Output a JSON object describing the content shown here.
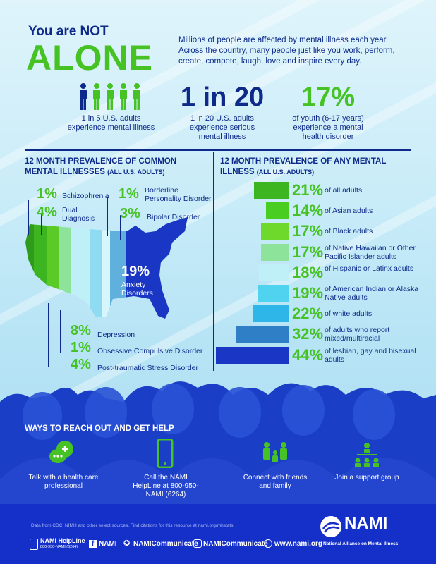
{
  "header": {
    "line1": "You are NOT",
    "line2": "ALONE",
    "intro": "Millions of people are affected by mental illness each year. Across the country, many people just like you work, perform, create, compete, laugh, love and inspire every day."
  },
  "stats": [
    {
      "big": "1 in 5",
      "text": "1 in 5 U.S. adults experience mental illness"
    },
    {
      "big": "1 in 20",
      "text": "1 in 20 U.S. adults experience serious mental illness"
    },
    {
      "big": "17%",
      "text": "of youth (6-17 years) experience a mental health disorder"
    }
  ],
  "left_section": {
    "title": "12 MONTH PREVALENCE OF COMMON MENTAL ILLNESSES",
    "subtitle": "(ALL U.S. ADULTS)",
    "items": [
      {
        "pct": "1%",
        "label": "Schizophrenia"
      },
      {
        "pct": "1%",
        "label": "Borderline Personality Disorder"
      },
      {
        "pct": "4%",
        "label": "Dual Diagnosis"
      },
      {
        "pct": "3%",
        "label": "Bipolar Disorder"
      },
      {
        "pct": "19%",
        "label": "Anxiety Disorders"
      },
      {
        "pct": "8%",
        "label": "Depression"
      },
      {
        "pct": "1%",
        "label": "Obsessive Compulsive Disorder"
      },
      {
        "pct": "4%",
        "label": "Post-traumatic Stress Disorder"
      }
    ]
  },
  "right_section": {
    "title": "12 MONTH PREVALENCE OF ANY MENTAL ILLNESS",
    "subtitle": "(ALL U.S. ADULTS)"
  },
  "chart_data": {
    "type": "bar",
    "categories": [
      "of all adults",
      "of Asian adults",
      "of Black adults",
      "of Native Hawaiian or Other Pacific Islander adults",
      "of Hispanic or Latinx adults",
      "of American Indian or Alaska Native adults",
      "of white adults",
      "of adults who report mixed/multiracial",
      "of lesbian, gay and bisexual adults"
    ],
    "values": [
      21,
      14,
      17,
      17,
      18,
      19,
      22,
      32,
      44
    ],
    "labels": [
      "21%",
      "14%",
      "17%",
      "17%",
      "18%",
      "19%",
      "22%",
      "32%",
      "44%"
    ],
    "colors": [
      "#3cb521",
      "#49cd21",
      "#6fd92b",
      "#8ee39a",
      "#bff0f7",
      "#4fd3ee",
      "#2fb6e8",
      "#2f7fc6",
      "#1a36c4"
    ]
  },
  "help": {
    "title": "WAYS TO REACH OUT AND GET HELP",
    "items": [
      {
        "label": "Talk with a health care professional",
        "icon": "chat-plus-icon"
      },
      {
        "label": "Call the NAMI HelpLine at 800-950-NAMI (6264)",
        "icon": "phone-icon"
      },
      {
        "label": "Connect with friends and family",
        "icon": "family-icon"
      },
      {
        "label": "Join a support group",
        "icon": "group-icon"
      }
    ]
  },
  "footer": {
    "source": "Data from CDC, NIMH and other select sources. Find citations for this resource at nami.org/mhstats",
    "helpline_title": "NAMI HelpLine",
    "helpline_number": "800-950-NAMI (6264)",
    "facebook": "NAMI",
    "twitter": "NAMICommunicate",
    "instagram": "NAMICommunicate",
    "website": "www.nami.org",
    "logo_text": "NAMI",
    "logo_sub": "National Alliance on Mental Illness"
  },
  "colors": {
    "navy": "#0d2a8a",
    "green": "#46c225",
    "band": "#1530c9"
  }
}
